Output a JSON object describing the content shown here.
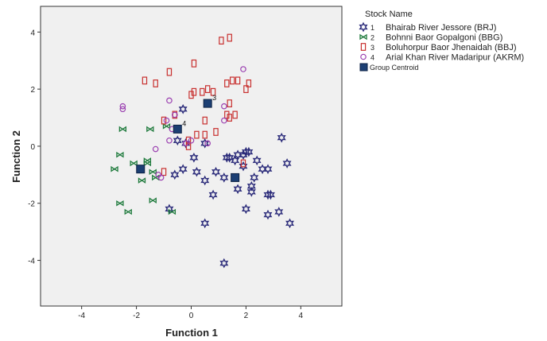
{
  "chart_data": {
    "type": "scatter",
    "title": "",
    "xlabel": "Function 1",
    "ylabel": "Function 2",
    "xlim": [
      -5.5,
      5.5
    ],
    "ylim": [
      -5.6,
      4.9
    ],
    "xticks": [
      -4,
      -2,
      0,
      2,
      4
    ],
    "yticks": [
      -4,
      -2,
      0,
      2,
      4
    ],
    "xtick_labels": [
      "-4",
      "-2",
      "0",
      "2",
      "4"
    ],
    "ytick_labels": [
      "-4",
      "-2",
      "0",
      "2",
      "4"
    ],
    "grid": false,
    "legend_position": "right",
    "legend_title": "Stock Name",
    "colors": {
      "background": "#f0f0f0",
      "series_1": "#2b2b7a",
      "series_2": "#1e7a3c",
      "series_3": "#c8302f",
      "series_4": "#9a3fb0",
      "centroid": "#1c3f73"
    },
    "series": [
      {
        "id": "1",
        "name": "Bhairab River Jessore (BRJ)",
        "marker": "star-icon",
        "points": [
          [
            -0.3,
            1.3
          ],
          [
            -0.5,
            0.2
          ],
          [
            -0.2,
            0.1
          ],
          [
            0.1,
            -0.4
          ],
          [
            -0.3,
            -0.8
          ],
          [
            -0.6,
            -1.0
          ],
          [
            0.2,
            -0.9
          ],
          [
            0.5,
            -1.2
          ],
          [
            0.9,
            -0.9
          ],
          [
            1.3,
            -0.4
          ],
          [
            1.4,
            -0.4
          ],
          [
            1.6,
            -0.5
          ],
          [
            1.7,
            -0.3
          ],
          [
            1.9,
            -0.3
          ],
          [
            2.0,
            -0.2
          ],
          [
            2.1,
            -0.2
          ],
          [
            1.9,
            -0.7
          ],
          [
            2.4,
            -0.5
          ],
          [
            2.6,
            -0.8
          ],
          [
            2.8,
            -0.8
          ],
          [
            2.3,
            -1.1
          ],
          [
            2.2,
            -1.4
          ],
          [
            2.2,
            -1.6
          ],
          [
            1.7,
            -1.5
          ],
          [
            1.2,
            -1.1
          ],
          [
            0.8,
            -1.7
          ],
          [
            2.8,
            -1.7
          ],
          [
            2.9,
            -1.7
          ],
          [
            3.3,
            0.3
          ],
          [
            3.5,
            -0.6
          ],
          [
            2.0,
            -2.2
          ],
          [
            2.8,
            -2.4
          ],
          [
            3.2,
            -2.3
          ],
          [
            3.6,
            -2.7
          ],
          [
            0.5,
            -2.7
          ],
          [
            -0.8,
            -2.2
          ],
          [
            1.2,
            -4.1
          ],
          [
            0.5,
            0.1
          ]
        ]
      },
      {
        "id": "2",
        "name": "Bohnni Baor Gopalgoni (BBG)",
        "marker": "bowtie-icon",
        "points": [
          [
            -2.5,
            0.6
          ],
          [
            -2.6,
            -0.3
          ],
          [
            -2.8,
            -0.8
          ],
          [
            -2.1,
            -0.6
          ],
          [
            -1.6,
            -0.5
          ],
          [
            -1.6,
            -0.6
          ],
          [
            -1.8,
            -1.2
          ],
          [
            -1.5,
            0.6
          ],
          [
            -0.9,
            0.7
          ],
          [
            -1.4,
            -0.9
          ],
          [
            -1.3,
            -1.1
          ],
          [
            -1.4,
            -1.9
          ],
          [
            -2.6,
            -2.0
          ],
          [
            -2.3,
            -2.3
          ],
          [
            -0.7,
            -2.3
          ]
        ]
      },
      {
        "id": "3",
        "name": "Boluhorpur Baor Jhenaidah (BBJ)",
        "marker": "rect-icon",
        "points": [
          [
            -1.7,
            2.3
          ],
          [
            -1.3,
            2.2
          ],
          [
            -0.8,
            2.6
          ],
          [
            0.1,
            2.9
          ],
          [
            0.0,
            1.8
          ],
          [
            0.1,
            1.9
          ],
          [
            0.4,
            1.9
          ],
          [
            0.6,
            2.0
          ],
          [
            0.8,
            1.9
          ],
          [
            1.1,
            3.7
          ],
          [
            1.4,
            3.8
          ],
          [
            1.3,
            2.2
          ],
          [
            1.5,
            2.3
          ],
          [
            1.7,
            2.3
          ],
          [
            2.0,
            2.0
          ],
          [
            2.1,
            2.2
          ],
          [
            1.4,
            1.5
          ],
          [
            1.4,
            1.0
          ],
          [
            1.6,
            1.1
          ],
          [
            1.3,
            1.1
          ],
          [
            0.5,
            0.9
          ],
          [
            0.2,
            0.4
          ],
          [
            0.5,
            0.4
          ],
          [
            0.9,
            0.5
          ],
          [
            -0.1,
            0.2
          ],
          [
            -0.1,
            0.0
          ],
          [
            -1.0,
            0.9
          ],
          [
            -1.0,
            -0.9
          ],
          [
            -0.6,
            1.1
          ],
          [
            1.9,
            -0.6
          ]
        ]
      },
      {
        "id": "4",
        "name": "Arial Khan River Madaripur (AKRM)",
        "marker": "circle-icon",
        "points": [
          [
            -2.5,
            1.4
          ],
          [
            -2.5,
            1.3
          ],
          [
            -0.8,
            1.6
          ],
          [
            -0.9,
            0.9
          ],
          [
            -0.6,
            1.1
          ],
          [
            -0.7,
            0.6
          ],
          [
            -0.8,
            0.2
          ],
          [
            -1.3,
            -0.1
          ],
          [
            -1.1,
            -1.1
          ],
          [
            -1.2,
            -1.0
          ],
          [
            -0.2,
            0.1
          ],
          [
            0.0,
            0.2
          ],
          [
            0.6,
            0.1
          ],
          [
            1.2,
            0.9
          ],
          [
            1.9,
            2.7
          ],
          [
            1.2,
            1.4
          ]
        ]
      }
    ],
    "centroids": {
      "name": "Group Centroid",
      "points": [
        {
          "label": "1",
          "x": 1.6,
          "y": -1.1,
          "show_label": false
        },
        {
          "label": "2",
          "x": -1.85,
          "y": -0.8,
          "show_label": false
        },
        {
          "label": "3",
          "x": 0.6,
          "y": 1.5,
          "show_label": true
        },
        {
          "label": "4",
          "x": -0.5,
          "y": 0.6,
          "show_label": true
        }
      ]
    }
  }
}
